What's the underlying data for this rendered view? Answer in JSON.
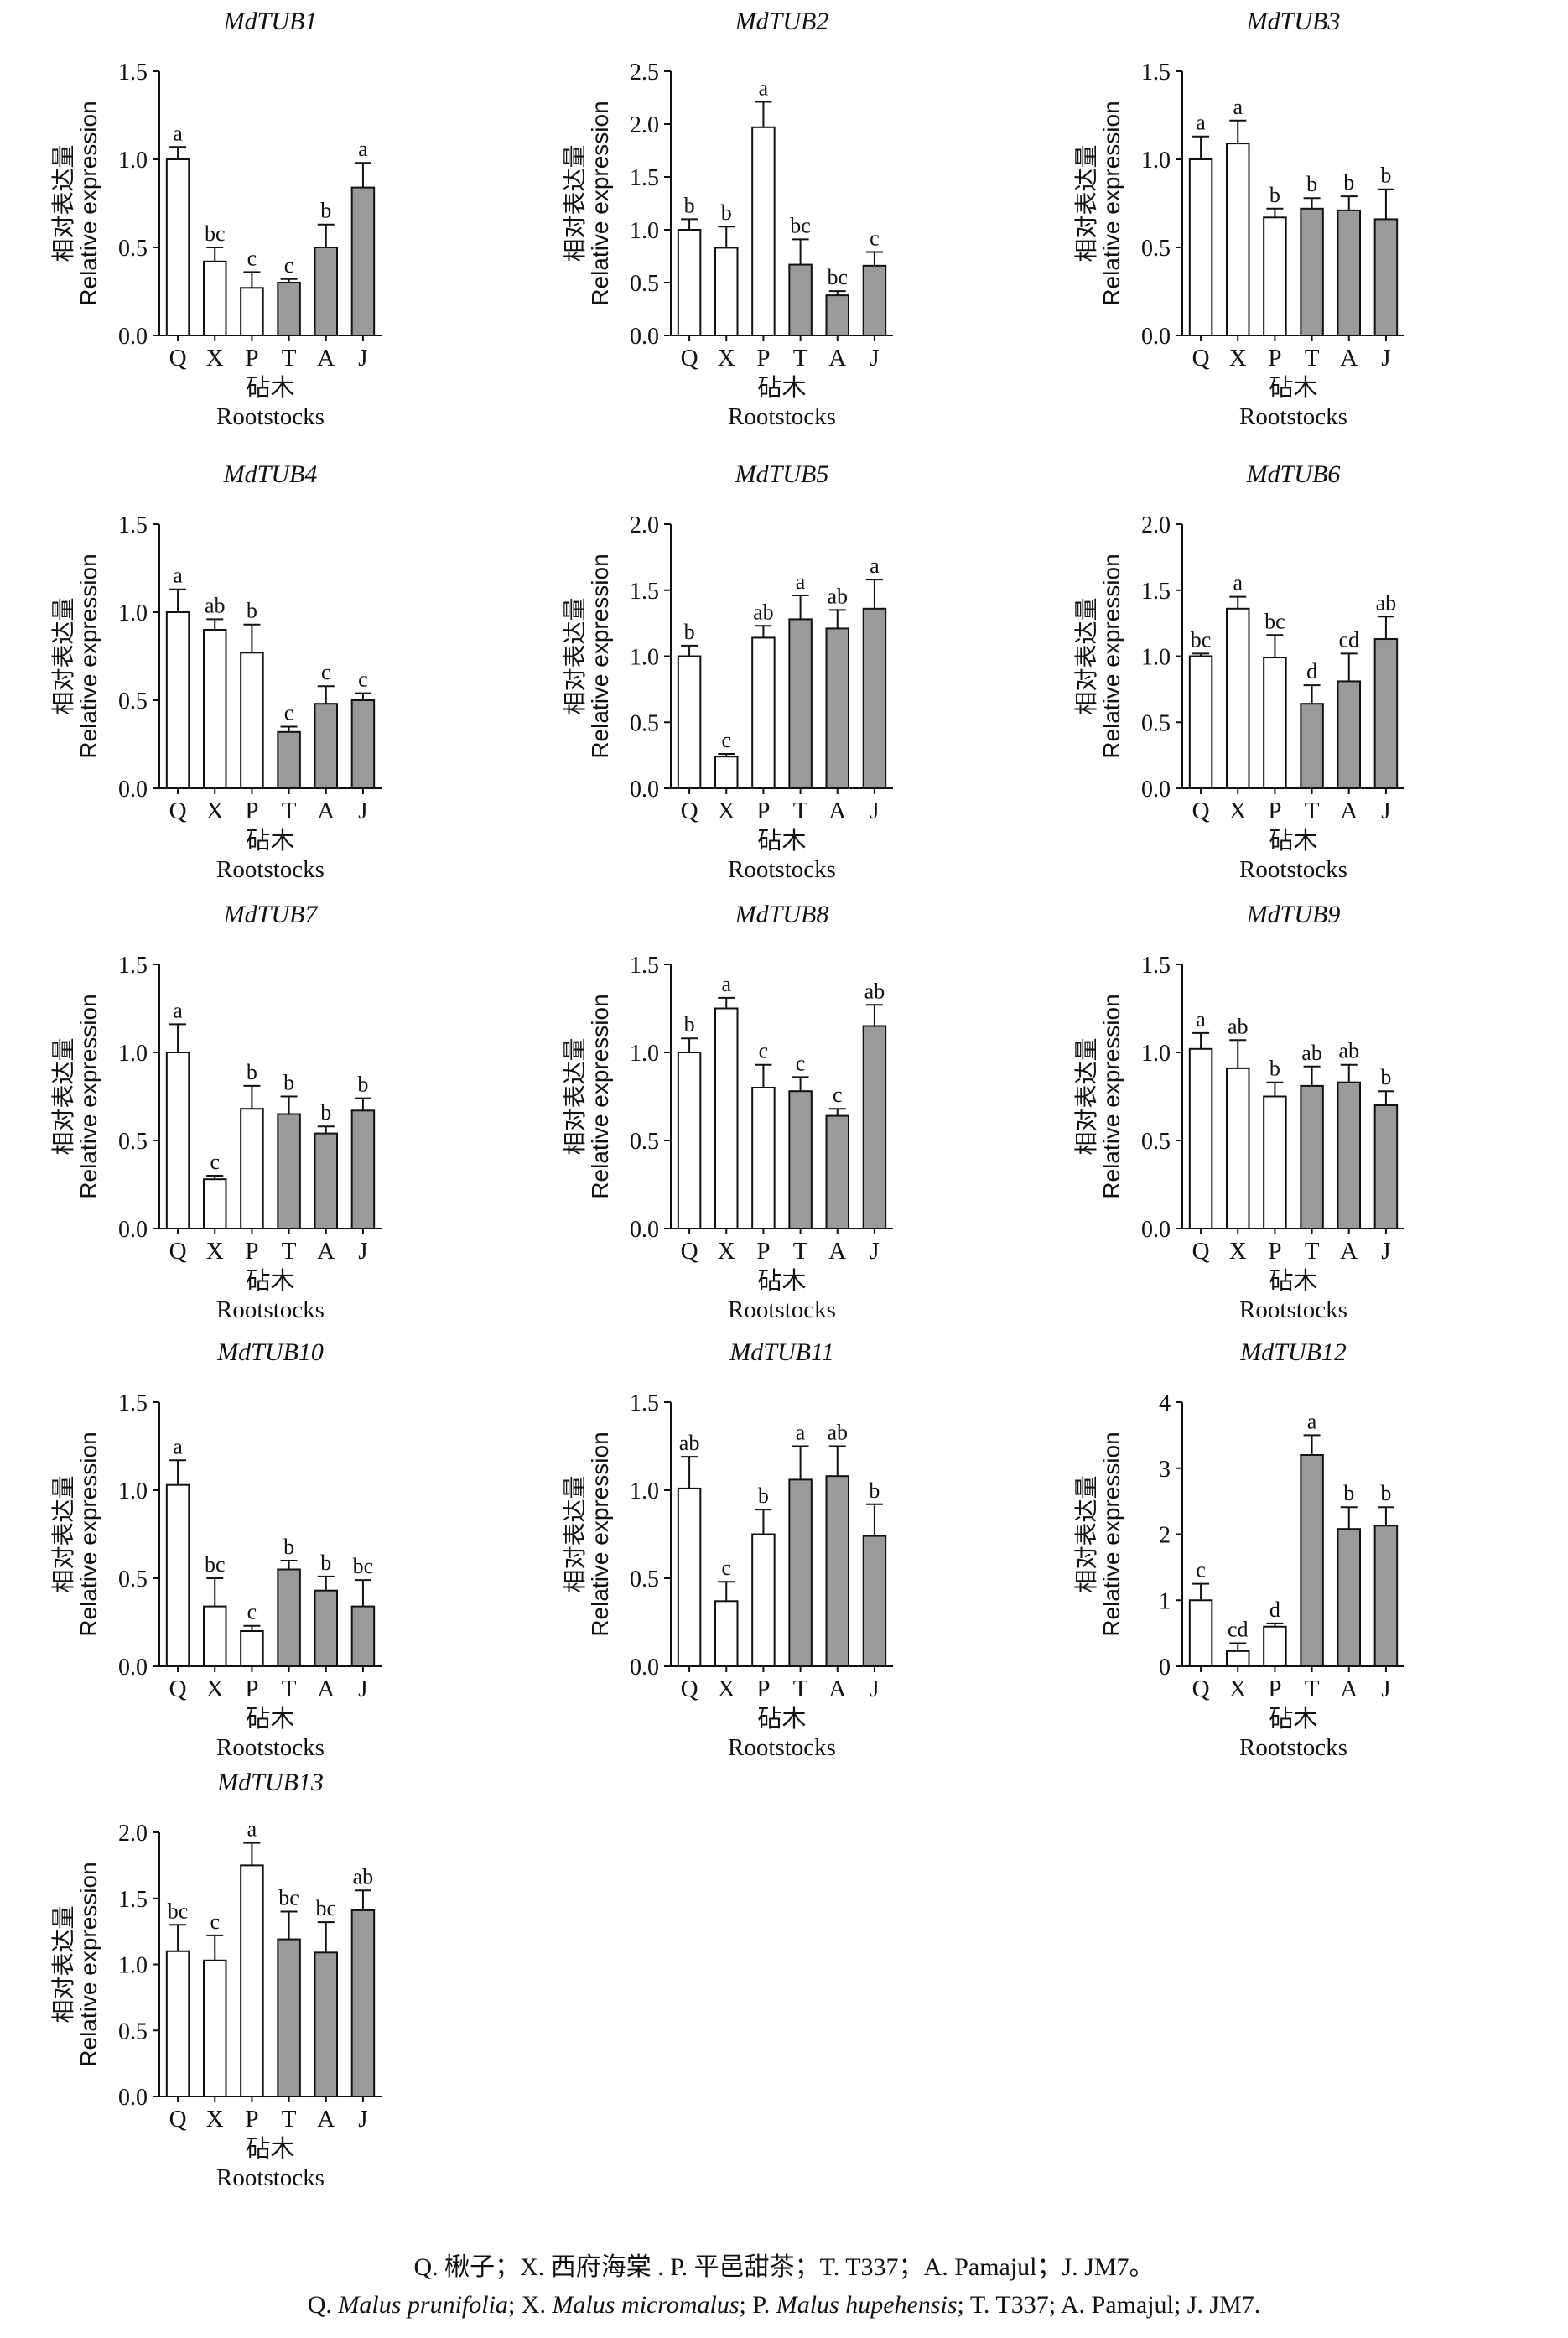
{
  "axis": {
    "ylabel_cn": "相对表达量",
    "ylabel_en": "Relative expression",
    "xlabel_cn": "砧木",
    "xlabel_en": "Rootstocks"
  },
  "colors": {
    "open_bar": "#ffffff",
    "filled_bar": "#9a9a9a",
    "stroke": "#111111"
  },
  "chart_data": [
    {
      "type": "bar",
      "title": "MdTUB1",
      "categories": [
        "Q",
        "X",
        "P",
        "T",
        "A",
        "J"
      ],
      "ylim": [
        0,
        1.5
      ],
      "yticks": [
        "0.0",
        "0.5",
        "1.0",
        "1.5"
      ],
      "values": [
        1.0,
        0.42,
        0.27,
        0.3,
        0.5,
        0.84
      ],
      "errors": [
        0.07,
        0.08,
        0.09,
        0.02,
        0.13,
        0.14
      ],
      "letters": [
        "a",
        "bc",
        "c",
        "c",
        "b",
        "a"
      ],
      "filled": [
        false,
        false,
        false,
        true,
        true,
        true
      ]
    },
    {
      "type": "bar",
      "title": "MdTUB2",
      "categories": [
        "Q",
        "X",
        "P",
        "T",
        "A",
        "J"
      ],
      "ylim": [
        0,
        2.5
      ],
      "yticks": [
        "0.0",
        "0.5",
        "1.0",
        "1.5",
        "2.0",
        "2.5"
      ],
      "values": [
        1.0,
        0.83,
        1.97,
        0.67,
        0.38,
        0.66
      ],
      "errors": [
        0.1,
        0.2,
        0.24,
        0.24,
        0.04,
        0.13
      ],
      "letters": [
        "b",
        "b",
        "a",
        "bc",
        "bc",
        "c"
      ],
      "filled": [
        false,
        false,
        false,
        true,
        true,
        true
      ]
    },
    {
      "type": "bar",
      "title": "MdTUB3",
      "categories": [
        "Q",
        "X",
        "P",
        "T",
        "A",
        "J"
      ],
      "ylim": [
        0,
        1.5
      ],
      "yticks": [
        "0.0",
        "0.5",
        "1.0",
        "1.5"
      ],
      "values": [
        1.0,
        1.09,
        0.67,
        0.72,
        0.71,
        0.66
      ],
      "errors": [
        0.13,
        0.13,
        0.05,
        0.06,
        0.08,
        0.17
      ],
      "letters": [
        "a",
        "a",
        "b",
        "b",
        "b",
        "b"
      ],
      "filled": [
        false,
        false,
        false,
        true,
        true,
        true
      ]
    },
    {
      "type": "bar",
      "title": "MdTUB4",
      "categories": [
        "Q",
        "X",
        "P",
        "T",
        "A",
        "J"
      ],
      "ylim": [
        0,
        1.5
      ],
      "yticks": [
        "0.0",
        "0.5",
        "1.0",
        "1.5"
      ],
      "values": [
        1.0,
        0.9,
        0.77,
        0.32,
        0.48,
        0.5
      ],
      "errors": [
        0.13,
        0.06,
        0.16,
        0.03,
        0.1,
        0.04
      ],
      "letters": [
        "a",
        "ab",
        "b",
        "c",
        "c",
        "c"
      ],
      "filled": [
        false,
        false,
        false,
        true,
        true,
        true
      ]
    },
    {
      "type": "bar",
      "title": "MdTUB5",
      "categories": [
        "Q",
        "X",
        "P",
        "T",
        "A",
        "J"
      ],
      "ylim": [
        0,
        2.0
      ],
      "yticks": [
        "0.0",
        "0.5",
        "1.0",
        "1.5",
        "2.0"
      ],
      "values": [
        1.0,
        0.24,
        1.14,
        1.28,
        1.21,
        1.36
      ],
      "errors": [
        0.08,
        0.02,
        0.09,
        0.18,
        0.14,
        0.22
      ],
      "letters": [
        "b",
        "c",
        "ab",
        "a",
        "ab",
        "a"
      ],
      "filled": [
        false,
        false,
        false,
        true,
        true,
        true
      ]
    },
    {
      "type": "bar",
      "title": "MdTUB6",
      "categories": [
        "Q",
        "X",
        "P",
        "T",
        "A",
        "J"
      ],
      "ylim": [
        0,
        2.0
      ],
      "yticks": [
        "0.0",
        "0.5",
        "1.0",
        "1.5",
        "2.0"
      ],
      "values": [
        1.0,
        1.36,
        0.99,
        0.64,
        0.81,
        1.13
      ],
      "errors": [
        0.02,
        0.09,
        0.17,
        0.14,
        0.21,
        0.17
      ],
      "letters": [
        "bc",
        "a",
        "bc",
        "d",
        "cd",
        "ab"
      ],
      "filled": [
        false,
        false,
        false,
        true,
        true,
        true
      ]
    },
    {
      "type": "bar",
      "title": "MdTUB7",
      "categories": [
        "Q",
        "X",
        "P",
        "T",
        "A",
        "J"
      ],
      "ylim": [
        0,
        1.5
      ],
      "yticks": [
        "0.0",
        "0.5",
        "1.0",
        "1.5"
      ],
      "values": [
        1.0,
        0.28,
        0.68,
        0.65,
        0.54,
        0.67
      ],
      "errors": [
        0.16,
        0.02,
        0.13,
        0.1,
        0.04,
        0.07
      ],
      "letters": [
        "a",
        "c",
        "b",
        "b",
        "b",
        "b"
      ],
      "filled": [
        false,
        false,
        false,
        true,
        true,
        true
      ]
    },
    {
      "type": "bar",
      "title": "MdTUB8",
      "categories": [
        "Q",
        "X",
        "P",
        "T",
        "A",
        "J"
      ],
      "ylim": [
        0,
        1.5
      ],
      "yticks": [
        "0.0",
        "0.5",
        "1.0",
        "1.5"
      ],
      "values": [
        1.0,
        1.25,
        0.8,
        0.78,
        0.64,
        1.15
      ],
      "errors": [
        0.08,
        0.06,
        0.13,
        0.08,
        0.04,
        0.12
      ],
      "letters": [
        "b",
        "a",
        "c",
        "c",
        "c",
        "ab"
      ],
      "filled": [
        false,
        false,
        false,
        true,
        true,
        true
      ]
    },
    {
      "type": "bar",
      "title": "MdTUB9",
      "categories": [
        "Q",
        "X",
        "P",
        "T",
        "A",
        "J"
      ],
      "ylim": [
        0,
        1.5
      ],
      "yticks": [
        "0.0",
        "0.5",
        "1.0",
        "1.5"
      ],
      "values": [
        1.02,
        0.91,
        0.75,
        0.81,
        0.83,
        0.7
      ],
      "errors": [
        0.09,
        0.16,
        0.08,
        0.11,
        0.1,
        0.08
      ],
      "letters": [
        "a",
        "ab",
        "b",
        "ab",
        "ab",
        "b"
      ],
      "filled": [
        false,
        false,
        false,
        true,
        true,
        true
      ]
    },
    {
      "type": "bar",
      "title": "MdTUB10",
      "categories": [
        "Q",
        "X",
        "P",
        "T",
        "A",
        "J"
      ],
      "ylim": [
        0,
        1.5
      ],
      "yticks": [
        "0.0",
        "0.5",
        "1.0",
        "1.5"
      ],
      "values": [
        1.03,
        0.34,
        0.2,
        0.55,
        0.43,
        0.34
      ],
      "errors": [
        0.14,
        0.16,
        0.03,
        0.05,
        0.08,
        0.15
      ],
      "letters": [
        "a",
        "bc",
        "c",
        "b",
        "b",
        "bc"
      ],
      "filled": [
        false,
        false,
        false,
        true,
        true,
        true
      ]
    },
    {
      "type": "bar",
      "title": "MdTUB11",
      "categories": [
        "Q",
        "X",
        "P",
        "T",
        "A",
        "J"
      ],
      "ylim": [
        0,
        1.5
      ],
      "yticks": [
        "0.0",
        "0.5",
        "1.0",
        "1.5"
      ],
      "values": [
        1.01,
        0.37,
        0.75,
        1.06,
        1.08,
        0.74
      ],
      "errors": [
        0.18,
        0.11,
        0.14,
        0.19,
        0.17,
        0.18
      ],
      "letters": [
        "ab",
        "c",
        "b",
        "a",
        "ab",
        "b"
      ],
      "filled": [
        false,
        false,
        false,
        true,
        true,
        true
      ]
    },
    {
      "type": "bar",
      "title": "MdTUB12",
      "categories": [
        "Q",
        "X",
        "P",
        "T",
        "A",
        "J"
      ],
      "ylim": [
        0,
        4
      ],
      "yticks": [
        "0",
        "1",
        "2",
        "3",
        "4"
      ],
      "values": [
        1.0,
        0.23,
        0.6,
        3.2,
        2.08,
        2.13
      ],
      "errors": [
        0.25,
        0.12,
        0.05,
        0.3,
        0.33,
        0.28
      ],
      "letters": [
        "c",
        "cd",
        "d",
        "a",
        "b",
        "b"
      ],
      "filled": [
        false,
        false,
        false,
        true,
        true,
        true
      ]
    },
    {
      "type": "bar",
      "title": "MdTUB13",
      "categories": [
        "Q",
        "X",
        "P",
        "T",
        "A",
        "J"
      ],
      "ylim": [
        0,
        2.0
      ],
      "yticks": [
        "0.0",
        "0.5",
        "1.0",
        "1.5",
        "2.0"
      ],
      "values": [
        1.1,
        1.03,
        1.75,
        1.19,
        1.09,
        1.41
      ],
      "errors": [
        0.2,
        0.19,
        0.17,
        0.21,
        0.23,
        0.15
      ],
      "letters": [
        "bc",
        "c",
        "a",
        "bc",
        "bc",
        "ab"
      ],
      "filled": [
        false,
        false,
        false,
        true,
        true,
        true
      ]
    }
  ],
  "caption": {
    "line1": "Q. 楸子；X. 西府海棠 . P. 平邑甜茶；T. T337；A. Pamajul；J. JM7。",
    "line2": {
      "q": "Q. ",
      "q_name": "Malus prunifolia",
      "x": "; X. ",
      "x_name": "Malus micromalus",
      "p": "; P. ",
      "p_name": "Malus hupehensis",
      "rest": "; T. T337; A. Pamajul; J. JM7."
    }
  }
}
